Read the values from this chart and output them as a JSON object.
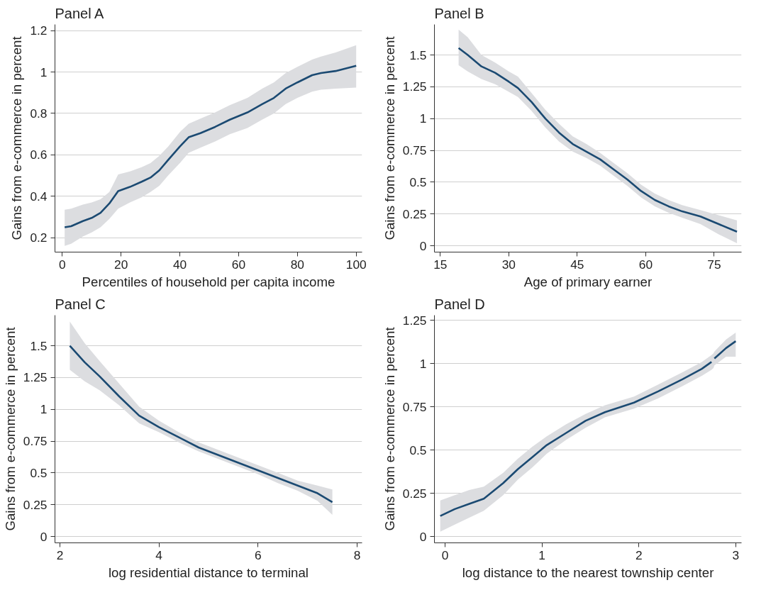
{
  "chart_data": [
    {
      "type": "line",
      "title": "Panel A",
      "xlabel": "Percentiles of household per capita income",
      "ylabel": "Gains from e-commerce in percent",
      "xlim": [
        -2.5,
        102
      ],
      "xticks": [
        0,
        20,
        40,
        60,
        80,
        100
      ],
      "ylim": [
        0.13,
        1.23
      ],
      "yticks": [
        0.2,
        0.4,
        0.6,
        0.8,
        1,
        1.2
      ],
      "grid": "y",
      "series": [
        {
          "color": "#1b4a72",
          "x": [
            0.8,
            3,
            7,
            10,
            13,
            16,
            19,
            23,
            27,
            30,
            33,
            36,
            40,
            43,
            47,
            52,
            57,
            63,
            68,
            72,
            76,
            80,
            85,
            88,
            93,
            100
          ],
          "values": [
            0.25,
            0.255,
            0.28,
            0.295,
            0.32,
            0.365,
            0.425,
            0.445,
            0.47,
            0.49,
            0.525,
            0.575,
            0.64,
            0.685,
            0.705,
            0.735,
            0.77,
            0.805,
            0.845,
            0.875,
            0.92,
            0.95,
            0.985,
            0.995,
            1.005,
            1.03
          ],
          "lower": [
            0.16,
            0.17,
            0.205,
            0.225,
            0.25,
            0.29,
            0.34,
            0.37,
            0.395,
            0.42,
            0.45,
            0.5,
            0.56,
            0.61,
            0.635,
            0.665,
            0.7,
            0.73,
            0.77,
            0.8,
            0.845,
            0.875,
            0.905,
            0.915,
            0.92,
            0.925
          ],
          "upper": [
            0.335,
            0.34,
            0.36,
            0.37,
            0.385,
            0.42,
            0.505,
            0.52,
            0.54,
            0.56,
            0.595,
            0.64,
            0.71,
            0.75,
            0.775,
            0.805,
            0.84,
            0.875,
            0.92,
            0.95,
            0.995,
            1.025,
            1.06,
            1.075,
            1.095,
            1.13
          ]
        }
      ]
    },
    {
      "type": "line",
      "title": "Panel B",
      "xlabel": "Age of primary earner",
      "ylabel": "Gains from e-commerce in percent",
      "xlim": [
        13.7,
        81
      ],
      "xticks": [
        15,
        30,
        45,
        60,
        75
      ],
      "ylim": [
        -0.05,
        1.74
      ],
      "yticks": [
        0,
        0.25,
        0.5,
        0.75,
        1,
        1.25,
        1.5
      ],
      "grid": "y",
      "series": [
        {
          "color": "#1b4a72",
          "x": [
            19,
            21,
            24,
            27,
            30,
            32,
            35,
            38,
            41,
            44,
            47,
            50,
            53,
            56,
            59,
            62,
            65,
            68,
            72,
            76,
            80
          ],
          "values": [
            1.555,
            1.5,
            1.41,
            1.36,
            1.29,
            1.24,
            1.13,
            1.0,
            0.89,
            0.8,
            0.74,
            0.68,
            0.6,
            0.52,
            0.43,
            0.36,
            0.31,
            0.27,
            0.23,
            0.17,
            0.11
          ],
          "lower": [
            1.42,
            1.37,
            1.31,
            1.27,
            1.21,
            1.17,
            1.06,
            0.93,
            0.82,
            0.74,
            0.69,
            0.63,
            0.55,
            0.47,
            0.38,
            0.31,
            0.26,
            0.22,
            0.17,
            0.09,
            0.02
          ],
          "upper": [
            1.7,
            1.64,
            1.5,
            1.44,
            1.37,
            1.33,
            1.2,
            1.07,
            0.96,
            0.86,
            0.8,
            0.73,
            0.65,
            0.57,
            0.48,
            0.41,
            0.36,
            0.32,
            0.28,
            0.24,
            0.2
          ]
        }
      ]
    },
    {
      "type": "line",
      "title": "Panel C",
      "xlabel": "log residential distance to terminal",
      "ylabel": "Gains from e-commerce in percent",
      "xlim": [
        1.9,
        8.1
      ],
      "xticks": [
        2,
        4,
        6,
        8
      ],
      "ylim": [
        -0.05,
        1.74
      ],
      "yticks": [
        0,
        0.25,
        0.5,
        0.75,
        1,
        1.25,
        1.5
      ],
      "grid": "y",
      "series": [
        {
          "color": "#1b4a72",
          "x": [
            2.2,
            2.5,
            2.8,
            3.2,
            3.6,
            4.0,
            4.4,
            4.8,
            5.2,
            5.6,
            6.0,
            6.4,
            6.8,
            7.2,
            7.5
          ],
          "values": [
            1.5,
            1.37,
            1.26,
            1.1,
            0.95,
            0.86,
            0.78,
            0.7,
            0.64,
            0.58,
            0.52,
            0.46,
            0.4,
            0.34,
            0.27
          ],
          "lower": [
            1.31,
            1.22,
            1.15,
            1.03,
            0.89,
            0.82,
            0.74,
            0.67,
            0.61,
            0.55,
            0.49,
            0.42,
            0.36,
            0.28,
            0.17
          ],
          "upper": [
            1.69,
            1.52,
            1.38,
            1.2,
            1.02,
            0.91,
            0.82,
            0.74,
            0.68,
            0.62,
            0.56,
            0.5,
            0.44,
            0.4,
            0.37
          ]
        }
      ]
    },
    {
      "type": "line",
      "title": "Panel D",
      "xlabel": "log distance to the nearest township center",
      "ylabel": "Gains from e-commerce in percent",
      "xlim": [
        -0.11,
        3.06
      ],
      "xticks": [
        0,
        1,
        2,
        3
      ],
      "ylim": [
        -0.035,
        1.28
      ],
      "yticks": [
        0,
        0.25,
        0.5,
        0.75,
        1,
        1.25
      ],
      "grid": "y",
      "series": [
        {
          "color": "#1b4a72",
          "x": [
            -0.05,
            0.1,
            0.25,
            0.4,
            0.6,
            0.75,
            0.9,
            1.05,
            1.25,
            1.45,
            1.65,
            1.95,
            2.2,
            2.45,
            2.65,
            2.75,
            2.77,
            2.78,
            2.9,
            3.0
          ],
          "values": [
            0.12,
            0.16,
            0.19,
            0.22,
            0.31,
            0.39,
            0.46,
            0.53,
            0.6,
            0.67,
            0.72,
            0.775,
            0.84,
            0.91,
            0.97,
            1.01,
            null,
            1.03,
            1.09,
            1.13
          ],
          "lower": [
            0.03,
            0.07,
            0.11,
            0.15,
            0.24,
            0.33,
            0.4,
            0.48,
            0.56,
            0.63,
            0.69,
            0.74,
            0.8,
            0.87,
            0.93,
            0.965,
            0.975,
            0.99,
            1.04,
            1.04
          ],
          "upper": [
            0.21,
            0.24,
            0.27,
            0.29,
            0.37,
            0.45,
            0.52,
            0.58,
            0.65,
            0.71,
            0.76,
            0.81,
            0.88,
            0.95,
            1.01,
            1.05,
            1.06,
            1.07,
            1.14,
            1.18
          ]
        }
      ]
    }
  ]
}
